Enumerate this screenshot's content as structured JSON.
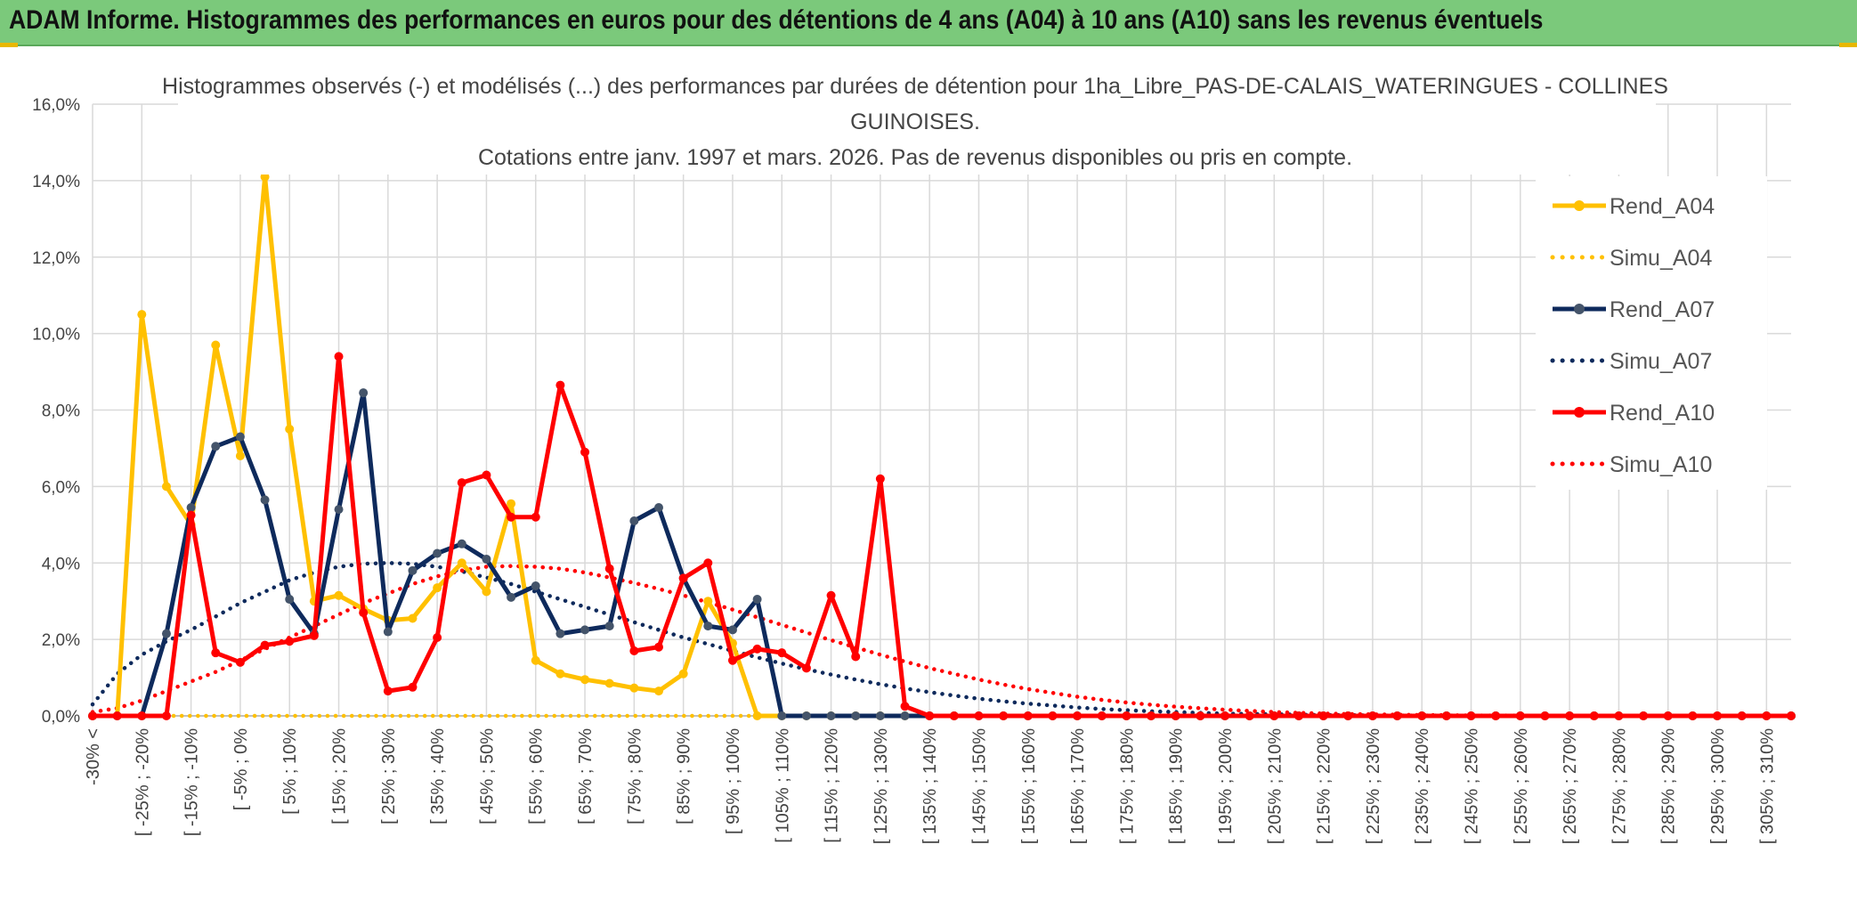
{
  "header": {
    "title": "ADAM Informe. Histogrammes des performances en euros pour des détentions de 4 ans (A04) à 10 ans (A10) sans les revenus éventuels"
  },
  "colors": {
    "banner_bg": "#7bc97b",
    "a04": "#ffc000",
    "a07": "#0e2a5c",
    "a07_marker": "#44546a",
    "a10": "#ff0000",
    "grid": "#d9d9d9"
  },
  "chart_data": {
    "type": "line",
    "title_lines": [
      "Histogrammes observés (-) et modélisés (...) des performances par durées de détention pour 1ha_Libre_PAS-DE-CALAIS_WATERINGUES - COLLINES",
      "GUINOISES.",
      "Cotations entre janv. 1997 et mars. 2026. Pas de revenus disponibles ou pris en compte."
    ],
    "ylim": [
      0,
      0.16
    ],
    "yticks": [
      "0,0%",
      "2,0%",
      "4,0%",
      "6,0%",
      "8,0%",
      "10,0%",
      "12,0%",
      "14,0%",
      "16,0%"
    ],
    "xlabels": [
      "-30% <",
      "[ -25% ; -20%",
      "[ -15% ; -10%",
      "[ -5% ; 0%",
      "[ 5% ; 10%",
      "[ 15% ; 20%",
      "[ 25% ; 30%",
      "[ 35% ; 40%",
      "[ 45% ; 50%",
      "[ 55% ; 60%",
      "[ 65% ; 70%",
      "[ 75% ; 80%",
      "[ 85% ; 90%",
      "[ 95% ; 100%",
      "[ 105% ; 110%",
      "[ 115% ; 120%",
      "[ 125% ; 130%",
      "[ 135% ; 140%",
      "[ 145% ; 150%",
      "[ 155% ; 160%",
      "[ 165% ; 170%",
      "[ 175% ; 180%",
      "[ 185% ; 190%",
      "[ 195% ; 200%",
      "[ 205% ; 210%",
      "[ 215% ; 220%",
      "[ 225% ; 230%",
      "[ 235% ; 240%",
      "[ 245% ; 250%",
      "[ 255% ; 260%",
      "[ 265% ; 270%",
      "[ 275% ; 280%",
      "[ 285% ; 290%",
      "[ 295% ; 300%",
      "[ 305% ; 310%"
    ],
    "series": [
      {
        "name": "Rend_A04",
        "style": "solid",
        "color": "#ffc000",
        "marker": "#ffc000",
        "values": [
          0,
          0,
          0.105,
          0.06,
          0.05,
          0.097,
          0.068,
          0.141,
          0.075,
          0.03,
          0.0315,
          0.028,
          0.025,
          0.0255,
          0.0335,
          0.04,
          0.0325,
          0.0555,
          0.0145,
          0.011,
          0.0095,
          0.0085,
          0.0073,
          0.0065,
          0.011,
          0.03,
          0.019,
          0,
          0,
          0,
          0,
          0,
          0,
          0,
          0,
          0,
          0,
          0,
          0,
          0,
          0,
          0,
          0,
          0,
          0,
          0,
          0,
          0,
          0,
          0,
          0,
          0,
          0,
          0,
          0,
          0,
          0,
          0,
          0,
          0,
          0,
          0,
          0,
          0,
          0,
          0,
          0,
          0,
          0,
          0
        ]
      },
      {
        "name": "Simu_A04",
        "style": "dotted",
        "color": "#ffc000",
        "values": [
          0,
          0,
          0,
          0,
          0,
          0,
          0,
          0,
          0,
          0,
          0,
          0,
          0,
          0,
          0,
          0,
          0,
          0,
          0,
          0,
          0,
          0,
          0,
          0,
          0,
          0,
          0,
          0,
          0,
          0,
          0,
          0,
          0,
          0,
          0,
          0,
          0,
          0,
          0,
          0,
          0,
          0,
          0,
          0,
          0,
          0,
          0,
          0,
          0,
          0,
          0,
          0,
          0,
          0,
          0,
          0,
          0,
          0,
          0,
          0,
          0,
          0,
          0,
          0,
          0,
          0,
          0,
          0,
          0,
          0
        ]
      },
      {
        "name": "Rend_A07",
        "style": "solid",
        "color": "#0e2a5c",
        "marker": "#44546a",
        "values": [
          0,
          0,
          0,
          0.0215,
          0.0545,
          0.0705,
          0.073,
          0.0565,
          0.0305,
          0.0215,
          0.054,
          0.0845,
          0.022,
          0.038,
          0.0425,
          0.045,
          0.041,
          0.031,
          0.034,
          0.0215,
          0.0225,
          0.0235,
          0.051,
          0.0545,
          0.036,
          0.0235,
          0.0225,
          0.0305,
          0,
          0,
          0,
          0,
          0,
          0,
          0,
          0,
          0,
          0,
          0,
          0,
          0,
          0,
          0,
          0,
          0,
          0,
          0,
          0,
          0,
          0,
          0,
          0,
          0,
          0,
          0,
          0,
          0,
          0,
          0,
          0,
          0,
          0,
          0,
          0,
          0,
          0,
          0,
          0,
          0,
          0
        ]
      },
      {
        "name": "Simu_A07",
        "style": "dotted",
        "color": "#0e2a5c",
        "values": [
          0.003,
          0.011,
          0.016,
          0.0195,
          0.0225,
          0.026,
          0.0295,
          0.0325,
          0.0355,
          0.0375,
          0.039,
          0.0398,
          0.04,
          0.0398,
          0.039,
          0.0378,
          0.0362,
          0.0345,
          0.0325,
          0.0305,
          0.0285,
          0.0265,
          0.0245,
          0.0225,
          0.0205,
          0.0188,
          0.017,
          0.0153,
          0.0137,
          0.0122,
          0.0108,
          0.0095,
          0.0083,
          0.0072,
          0.0062,
          0.0053,
          0.0045,
          0.0038,
          0.0032,
          0.0027,
          0.0022,
          0.0018,
          0.0015,
          0.0012,
          0.001,
          0.0008,
          0.0006,
          0.0005,
          0.0004,
          0.0003,
          0.0002,
          0.0002,
          0.0001,
          0.0001,
          0.0001,
          0.0001,
          0,
          0,
          0,
          0,
          0,
          0,
          0,
          0,
          0,
          0,
          0,
          0,
          0,
          0
        ]
      },
      {
        "name": "Rend_A10",
        "style": "solid",
        "color": "#ff0000",
        "marker": "#ff0000",
        "values": [
          0,
          0,
          0,
          0,
          0.0525,
          0.0165,
          0.014,
          0.0185,
          0.0195,
          0.021,
          0.094,
          0.027,
          0.0065,
          0.0075,
          0.0205,
          0.061,
          0.063,
          0.052,
          0.052,
          0.0865,
          0.069,
          0.0385,
          0.017,
          0.018,
          0.036,
          0.04,
          0.0145,
          0.0175,
          0.0165,
          0.0125,
          0.0315,
          0.0155,
          0.062,
          0.0025,
          0,
          0,
          0,
          0,
          0,
          0,
          0,
          0,
          0,
          0,
          0,
          0,
          0,
          0,
          0,
          0,
          0,
          0,
          0,
          0,
          0,
          0,
          0,
          0,
          0,
          0,
          0,
          0,
          0,
          0,
          0,
          0,
          0,
          0,
          0,
          0
        ]
      },
      {
        "name": "Simu_A10",
        "style": "dotted",
        "color": "#ff0000",
        "values": [
          0.001,
          0.002,
          0.004,
          0.0065,
          0.009,
          0.0115,
          0.0145,
          0.0175,
          0.0205,
          0.0235,
          0.0265,
          0.0295,
          0.032,
          0.0345,
          0.0365,
          0.038,
          0.039,
          0.0392,
          0.039,
          0.0385,
          0.0375,
          0.0362,
          0.0348,
          0.0332,
          0.0315,
          0.0297,
          0.0278,
          0.0258,
          0.0238,
          0.0218,
          0.0198,
          0.0179,
          0.016,
          0.0142,
          0.0125,
          0.011,
          0.0095,
          0.0082,
          0.007,
          0.006,
          0.005,
          0.0042,
          0.0035,
          0.0029,
          0.0024,
          0.002,
          0.0016,
          0.0013,
          0.001,
          0.0008,
          0.0006,
          0.0005,
          0.0004,
          0.0003,
          0.0002,
          0.0002,
          0.0001,
          0.0001,
          0.0001,
          0,
          0,
          0,
          0,
          0,
          0,
          0,
          0,
          0,
          0,
          0
        ]
      }
    ]
  }
}
